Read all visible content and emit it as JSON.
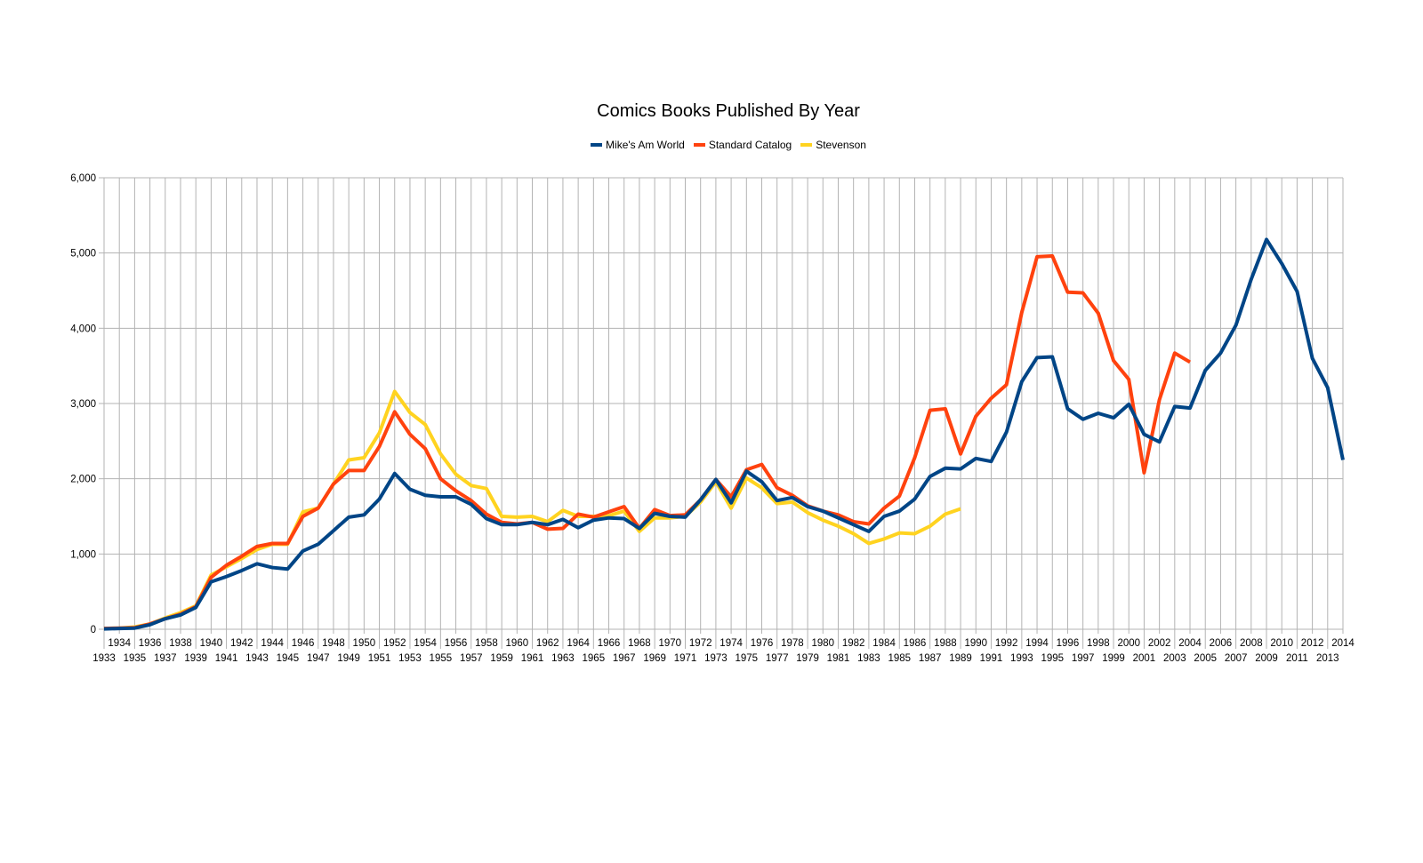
{
  "chart_data": {
    "type": "line",
    "title": "Comics Books Published By Year",
    "xlabel": "",
    "ylabel": "",
    "ylim": [
      0,
      6000
    ],
    "yticks": [
      0,
      1000,
      2000,
      3000,
      4000,
      5000,
      6000
    ],
    "ytick_labels": [
      "0",
      "1,000",
      "2,000",
      "3,000",
      "4,000",
      "5,000",
      "6,000"
    ],
    "grid": true,
    "legend_position": "top-center",
    "x": [
      1933,
      1934,
      1935,
      1936,
      1937,
      1938,
      1939,
      1940,
      1941,
      1942,
      1943,
      1944,
      1945,
      1946,
      1947,
      1948,
      1949,
      1950,
      1951,
      1952,
      1953,
      1954,
      1955,
      1956,
      1957,
      1958,
      1959,
      1960,
      1961,
      1962,
      1963,
      1964,
      1965,
      1966,
      1967,
      1968,
      1969,
      1970,
      1971,
      1972,
      1973,
      1974,
      1975,
      1976,
      1977,
      1978,
      1979,
      1980,
      1981,
      1982,
      1983,
      1984,
      1985,
      1986,
      1987,
      1988,
      1989,
      1990,
      1991,
      1992,
      1993,
      1994,
      1995,
      1996,
      1997,
      1998,
      1999,
      2000,
      2001,
      2002,
      2003,
      2004,
      2005,
      2006,
      2007,
      2008,
      2009,
      2010,
      2011,
      2012,
      2013,
      2014
    ],
    "series": [
      {
        "name": "Mike's Am World",
        "color": "#004586",
        "values": [
          5,
          10,
          15,
          60,
          140,
          190,
          290,
          630,
          700,
          780,
          870,
          820,
          800,
          1040,
          1130,
          1310,
          1490,
          1520,
          1730,
          2070,
          1860,
          1780,
          1760,
          1760,
          1660,
          1470,
          1390,
          1390,
          1420,
          1390,
          1460,
          1350,
          1450,
          1480,
          1470,
          1340,
          1540,
          1500,
          1490,
          1720,
          1990,
          1680,
          2100,
          1960,
          1710,
          1750,
          1630,
          1570,
          1480,
          1390,
          1300,
          1500,
          1570,
          1730,
          2030,
          2140,
          2130,
          2270,
          2230,
          2620,
          3290,
          3610,
          3620,
          2930,
          2790,
          2870,
          2810,
          2990,
          2590,
          2490,
          2960,
          2940,
          3440,
          3670,
          4040,
          4650,
          5180,
          4860,
          4490,
          3600,
          3210,
          2250
        ]
      },
      {
        "name": "Standard Catalog",
        "color": "#ff420e",
        "values": [
          10,
          15,
          20,
          70,
          140,
          200,
          300,
          690,
          850,
          970,
          1100,
          1140,
          1140,
          1500,
          1610,
          1930,
          2110,
          2110,
          2430,
          2890,
          2590,
          2400,
          2000,
          1840,
          1710,
          1530,
          1420,
          1400,
          1420,
          1330,
          1340,
          1530,
          1490,
          1560,
          1630,
          1340,
          1590,
          1510,
          1520,
          1720,
          1990,
          1760,
          2120,
          2190,
          1880,
          1780,
          1640,
          1570,
          1520,
          1430,
          1400,
          1610,
          1770,
          2280,
          2910,
          2930,
          2330,
          2830,
          3070,
          3250,
          4210,
          4950,
          4960,
          4480,
          4470,
          4200,
          3570,
          3320,
          2080,
          3050,
          3670,
          3550,
          null,
          null,
          null,
          null,
          null,
          null,
          null,
          null,
          null,
          null
        ]
      },
      {
        "name": "Stevenson",
        "color": "#ffd320",
        "values": [
          10,
          15,
          30,
          70,
          150,
          220,
          310,
          720,
          830,
          940,
          1060,
          1130,
          1130,
          1560,
          1610,
          1930,
          2250,
          2280,
          2610,
          3160,
          2880,
          2720,
          2330,
          2060,
          1910,
          1870,
          1500,
          1490,
          1500,
          1430,
          1580,
          1500,
          1500,
          1510,
          1570,
          1300,
          1480,
          1480,
          1500,
          1690,
          1960,
          1610,
          2010,
          1880,
          1670,
          1690,
          1550,
          1450,
          1370,
          1270,
          1140,
          1200,
          1280,
          1270,
          1370,
          1530,
          1600,
          null,
          null,
          null,
          null,
          null,
          null,
          null,
          null,
          null,
          null,
          null,
          null,
          null,
          null,
          null,
          null,
          null,
          null,
          null,
          null,
          null,
          null,
          null,
          null,
          null
        ]
      }
    ]
  }
}
